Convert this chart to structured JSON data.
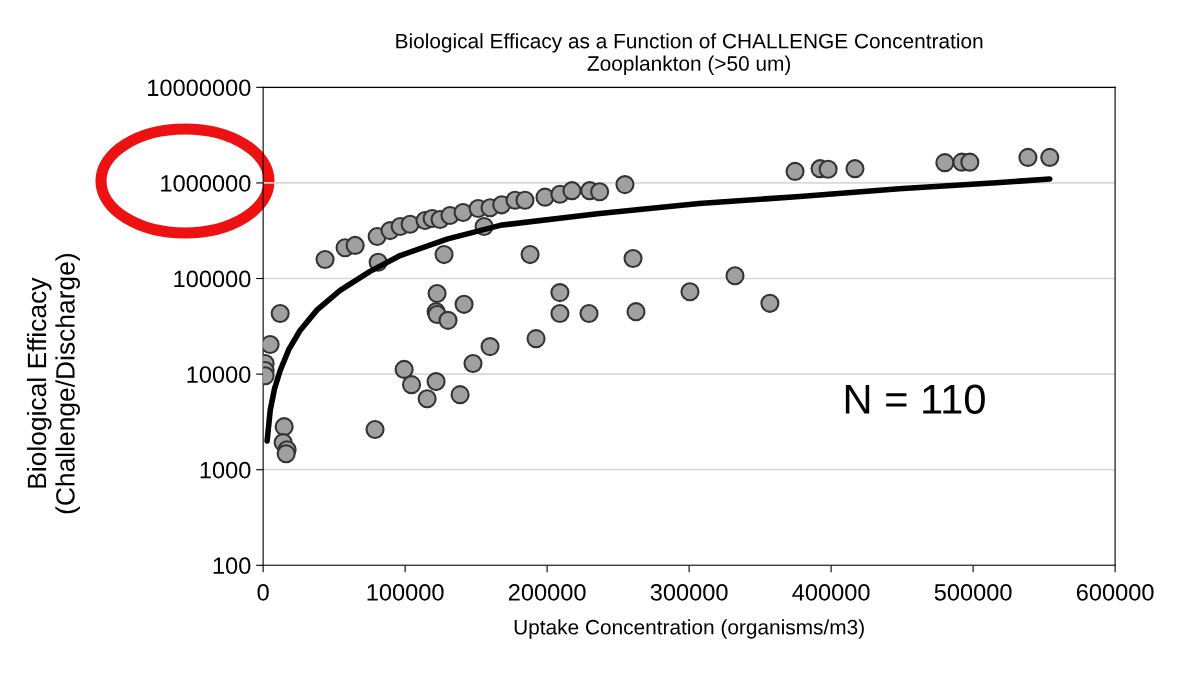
{
  "chart_data": {
    "type": "scatter",
    "title": "Biological Efficacy as a Function of CHALLENGE Concentration\nZooplankton (>50 um)",
    "xlabel": "Uptake Concentration (organisms/m3)",
    "ylabel": "Biological Efficacy\n(Challenge/Discharge)",
    "log": "y",
    "grid": "y",
    "marker": "circle",
    "xlim": [
      0,
      600000
    ],
    "xticks": [
      0,
      100000,
      200000,
      300000,
      400000,
      500000,
      600000
    ],
    "ylim": [
      100,
      10000000
    ],
    "yticks": [
      100,
      1000,
      10000,
      100000,
      1000000,
      10000000
    ],
    "annotations": [
      "N = 110"
    ],
    "series": [
      {
        "color": "#a0a0a0",
        "x": [
          43600,
          57700,
          64800,
          80300,
          81000,
          89400,
          96500,
          103500,
          114000,
          119000,
          124600,
          131600,
          140800,
          151400,
          159800,
          155600,
          168000,
          177400,
          184400,
          198500,
          209000,
          217500,
          230000,
          237000,
          254800,
          188000,
          127400,
          260500,
          374600,
          392200,
          397900,
          416800,
          480100,
          492100,
          497700,
          538600,
          554000,
          12000,
          4900,
          1400,
          1400,
          1400,
          14800,
          14100,
          16900,
          16200,
          78800,
          99300,
          104500,
          115500,
          121800,
          122500,
          121800,
          122500,
          130200,
          141500,
          138700,
          147800,
          159800,
          192200,
          209000,
          209000,
          229500,
          262600,
          300600,
          332300,
          356900
        ],
        "values": [
          158000,
          210000,
          222000,
          275000,
          148000,
          317000,
          350000,
          370000,
          405000,
          425000,
          415000,
          457000,
          490000,
          540000,
          550000,
          350000,
          590000,
          660000,
          660000,
          710000,
          760000,
          830000,
          830000,
          810000,
          960000,
          178000,
          178000,
          162000,
          1320000,
          1410000,
          1390000,
          1410000,
          1630000,
          1650000,
          1650000,
          1850000,
          1850000,
          43000,
          20400,
          12900,
          10900,
          9600,
          2820,
          1920,
          1620,
          1470,
          2630,
          11200,
          7760,
          5530,
          8350,
          69800,
          45000,
          42000,
          36500,
          53700,
          6100,
          12900,
          19400,
          23500,
          71200,
          43100,
          43100,
          45000,
          72800,
          107000,
          55000
        ]
      },
      {
        "type": "line",
        "color": "#000000",
        "marker": "none",
        "line_style": "solid",
        "x": [
          2800,
          5000,
          8000,
          12000,
          18000,
          26000,
          38000,
          54200,
          75000,
          96500,
          130000,
          167000,
          237000,
          307000,
          378000,
          448000,
          519000,
          554000
        ],
        "values": [
          2000,
          4200,
          7000,
          10900,
          18000,
          28600,
          47000,
          75000,
          118000,
          174000,
          260000,
          360000,
          480000,
          610000,
          720000,
          870000,
          1010000,
          1100000
        ]
      }
    ]
  }
}
